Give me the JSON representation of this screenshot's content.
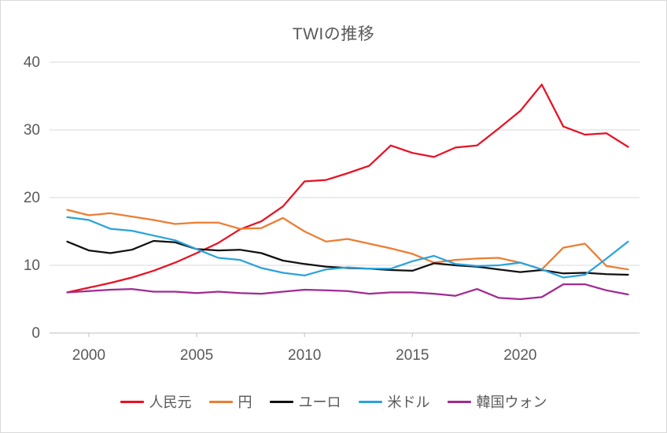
{
  "chart_data": {
    "type": "line",
    "title": "TWIの推移",
    "xlabel": "",
    "ylabel": "",
    "xlim": [
      1999,
      2025
    ],
    "ylim": [
      0,
      40
    ],
    "x_ticks": [
      2000,
      2005,
      2010,
      2015,
      2020
    ],
    "y_ticks": [
      0,
      10,
      20,
      30,
      40
    ],
    "grid": "horizontal",
    "legend_position": "bottom",
    "x": [
      1999,
      2000,
      2001,
      2002,
      2003,
      2004,
      2005,
      2006,
      2007,
      2008,
      2009,
      2010,
      2011,
      2012,
      2013,
      2014,
      2015,
      2016,
      2017,
      2018,
      2019,
      2020,
      2021,
      2022,
      2023,
      2024,
      2025
    ],
    "series": [
      {
        "name": "人民元",
        "color": "#e81123",
        "values": [
          6.0,
          6.7,
          7.4,
          8.2,
          9.2,
          10.4,
          11.8,
          13.3,
          15.3,
          16.5,
          18.7,
          22.4,
          22.6,
          23.6,
          24.7,
          27.7,
          26.6,
          26.0,
          27.4,
          27.7,
          30.2,
          32.8,
          36.7,
          30.5,
          29.3,
          29.5,
          27.5
        ]
      },
      {
        "name": "円",
        "color": "#ED7D31",
        "values": [
          18.2,
          17.4,
          17.7,
          17.2,
          16.7,
          16.1,
          16.3,
          16.3,
          15.4,
          15.5,
          17.0,
          15.0,
          13.5,
          13.9,
          13.2,
          12.5,
          11.7,
          10.4,
          10.8,
          11.0,
          11.1,
          10.4,
          9.4,
          12.6,
          13.2,
          9.9,
          9.4
        ]
      },
      {
        "name": "ユーロ",
        "color": "#111111",
        "values": [
          13.5,
          12.2,
          11.8,
          12.3,
          13.6,
          13.4,
          12.4,
          12.2,
          12.3,
          11.8,
          10.7,
          10.2,
          9.8,
          9.6,
          9.5,
          9.3,
          9.2,
          10.3,
          10.0,
          9.8,
          9.4,
          9.0,
          9.3,
          8.8,
          8.9,
          8.7,
          8.6
        ]
      },
      {
        "name": "米ドル",
        "color": "#2AA3DC",
        "values": [
          17.1,
          16.7,
          15.4,
          15.1,
          14.4,
          13.7,
          12.4,
          11.1,
          10.8,
          9.6,
          8.9,
          8.5,
          9.4,
          9.7,
          9.5,
          9.5,
          10.6,
          11.4,
          10.2,
          9.9,
          10.0,
          10.4,
          9.4,
          8.2,
          8.6,
          11.0,
          13.5
        ]
      },
      {
        "name": "韓国ウォン",
        "color": "#A02B93",
        "values": [
          6.0,
          6.2,
          6.4,
          6.5,
          6.1,
          6.1,
          5.9,
          6.1,
          5.9,
          5.8,
          6.1,
          6.4,
          6.3,
          6.2,
          5.8,
          6.0,
          6.0,
          5.8,
          5.5,
          6.5,
          5.2,
          5.0,
          5.3,
          7.2,
          7.2,
          6.3,
          5.7
        ]
      }
    ],
    "style": {
      "axis_text_color": "#595959",
      "gridline_color": "#d9d9d9",
      "axis_line_color": "#bfbfbf"
    }
  }
}
